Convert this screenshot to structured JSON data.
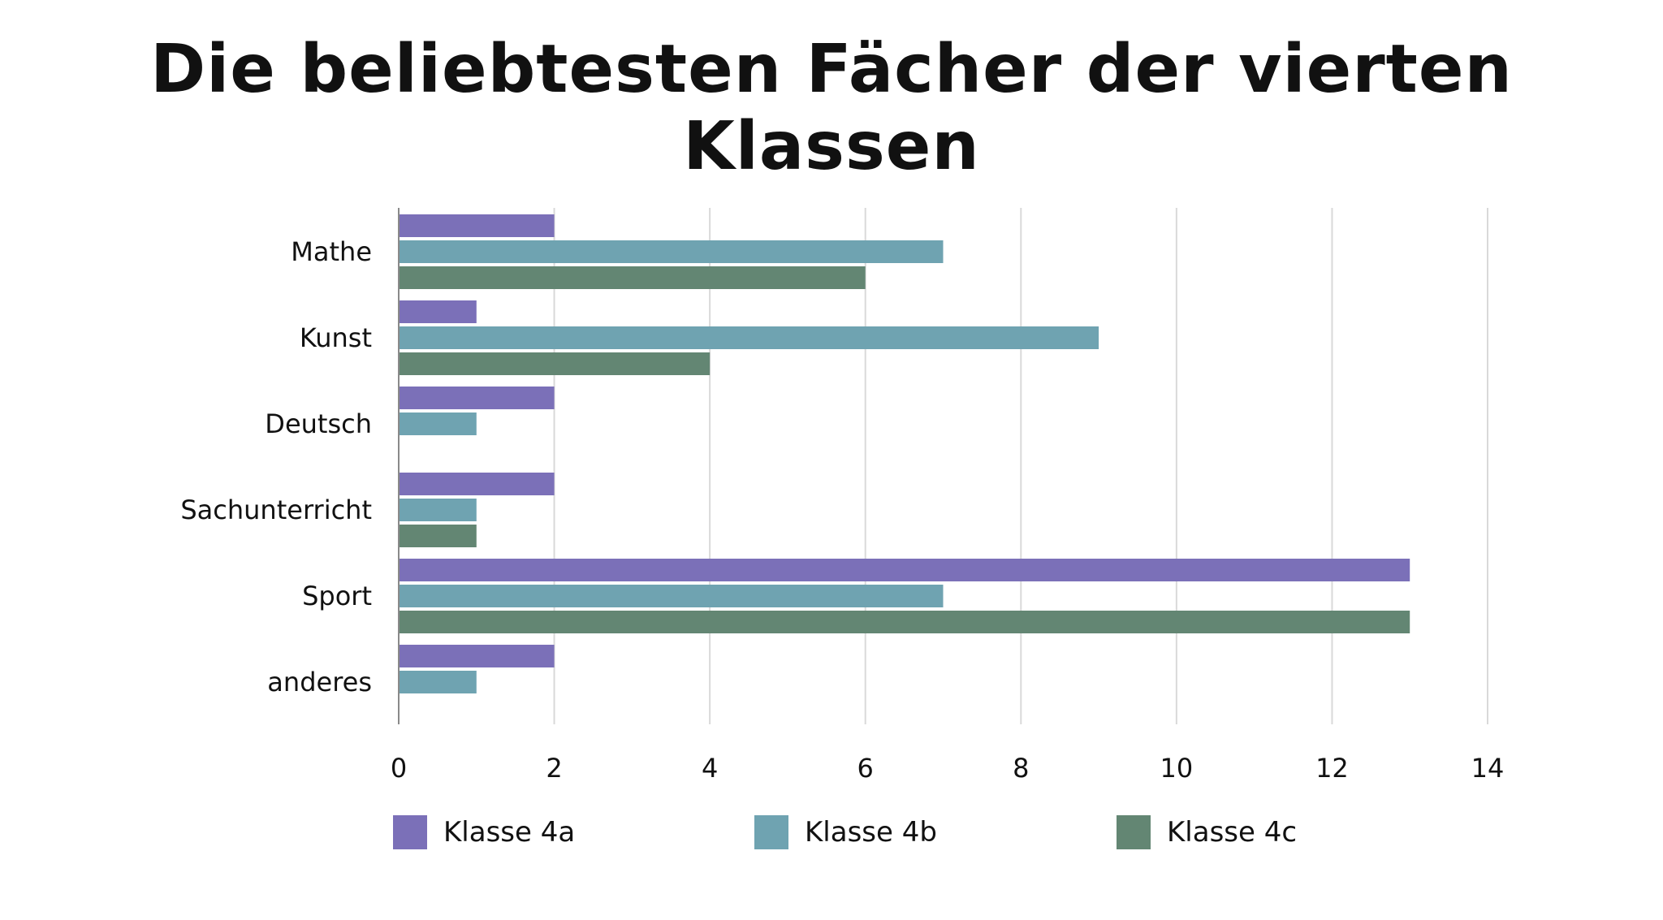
{
  "chart_data": {
    "type": "bar",
    "orientation": "horizontal",
    "title": "Die beliebtesten Fächer der vierten Klassen",
    "categories": [
      "Mathe",
      "Kunst",
      "Deutsch",
      "Sachunterricht",
      "Sport",
      "anderes"
    ],
    "series": [
      {
        "name": "Klasse 4a",
        "color": "#7b70b8",
        "values": [
          2,
          1,
          2,
          2,
          13,
          2
        ]
      },
      {
        "name": "Klasse 4b",
        "color": "#6fa3b1",
        "values": [
          7,
          9,
          1,
          1,
          7,
          1
        ]
      },
      {
        "name": "Klasse 4c",
        "color": "#638673",
        "values": [
          6,
          4,
          0,
          1,
          13,
          0
        ]
      }
    ],
    "xlim": [
      0,
      14
    ],
    "xticks": [
      "0",
      "2",
      "4",
      "6",
      "8",
      "10",
      "12",
      "14"
    ],
    "grid": true,
    "legend_position": "bottom"
  }
}
